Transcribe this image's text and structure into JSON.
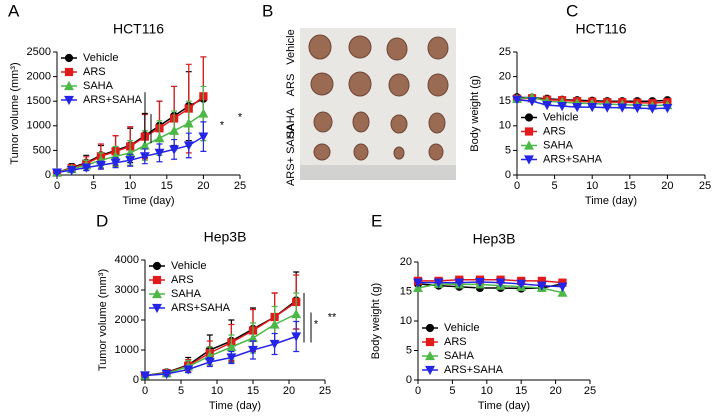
{
  "chart_data": [
    {
      "type": "line",
      "panel_label": "A",
      "title": "HCT116",
      "xlabel": "Time (day)",
      "ylabel": "Tumor volume (mm³)",
      "x": [
        0,
        2,
        4,
        6,
        8,
        10,
        12,
        14,
        16,
        18,
        20
      ],
      "xlim": [
        0,
        25
      ],
      "xticks": [
        0,
        5,
        10,
        15,
        20,
        25
      ],
      "ylim": [
        0,
        2500
      ],
      "yticks": [
        0,
        500,
        1000,
        1500,
        2000,
        2500
      ],
      "legend": "upper left",
      "series": [
        {
          "name": "Vehicle",
          "color": "#000000",
          "marker": "circle",
          "values": [
            50,
            150,
            250,
            400,
            500,
            600,
            800,
            1000,
            1200,
            1400,
            1550
          ],
          "errors": [
            20,
            80,
            150,
            200,
            300,
            350,
            450,
            500,
            600,
            700,
            850
          ]
        },
        {
          "name": "ARS",
          "color": "#e31a1c",
          "marker": "square",
          "values": [
            50,
            140,
            230,
            380,
            480,
            580,
            780,
            950,
            1150,
            1350,
            1600
          ],
          "errors": [
            20,
            70,
            140,
            250,
            320,
            400,
            450,
            550,
            650,
            900,
            800
          ]
        },
        {
          "name": "SAHA",
          "color": "#4cb847",
          "marker": "triangle-up",
          "values": [
            50,
            120,
            200,
            300,
            380,
            450,
            600,
            750,
            900,
            1050,
            1250
          ],
          "errors": [
            20,
            60,
            100,
            150,
            200,
            250,
            300,
            350,
            400,
            450,
            550
          ]
        },
        {
          "name": "ARS+SAHA",
          "color": "#2525e8",
          "marker": "triangle-down",
          "values": [
            50,
            100,
            150,
            200,
            250,
            300,
            380,
            450,
            520,
            600,
            780
          ],
          "errors": [
            20,
            40,
            60,
            80,
            100,
            120,
            150,
            180,
            200,
            250,
            300
          ]
        }
      ],
      "annotations": [
        "*",
        "*"
      ]
    },
    {
      "type": "image",
      "panel_label": "B",
      "row_labels": [
        "Vehicle",
        "ARS",
        "SAHA",
        "ARS+ SAHA"
      ]
    },
    {
      "type": "line",
      "panel_label": "C",
      "title": "HCT116",
      "xlabel": "Time (day)",
      "ylabel": "Body weight (g)",
      "x": [
        0,
        2,
        4,
        6,
        8,
        10,
        12,
        14,
        16,
        18,
        20
      ],
      "xlim": [
        0,
        25
      ],
      "xticks": [
        0,
        5,
        10,
        15,
        20,
        25
      ],
      "ylim": [
        0,
        25
      ],
      "yticks": [
        0,
        5,
        10,
        15,
        20,
        25
      ],
      "legend": "center left",
      "series": [
        {
          "name": "Vehicle",
          "color": "#000000",
          "marker": "circle",
          "values": [
            15.8,
            15.7,
            15.5,
            15.3,
            15.2,
            15.1,
            15.0,
            15.0,
            15.0,
            15.0,
            15.2
          ]
        },
        {
          "name": "ARS",
          "color": "#e31a1c",
          "marker": "square",
          "values": [
            15.5,
            15.6,
            15.3,
            15.2,
            15.0,
            14.9,
            14.8,
            14.8,
            14.7,
            14.6,
            14.8
          ]
        },
        {
          "name": "SAHA",
          "color": "#4cb847",
          "marker": "triangle-up",
          "values": [
            15.5,
            15.8,
            15.0,
            14.8,
            14.6,
            14.5,
            14.4,
            14.3,
            14.2,
            14.1,
            14.2
          ]
        },
        {
          "name": "ARS+SAHA",
          "color": "#2525e8",
          "marker": "triangle-down",
          "values": [
            15.3,
            15.0,
            14.2,
            14.0,
            13.8,
            13.8,
            13.7,
            13.7,
            13.6,
            13.5,
            13.6
          ]
        }
      ]
    },
    {
      "type": "line",
      "panel_label": "D",
      "title": "Hep3B",
      "xlabel": "Time (day)",
      "ylabel": "Tumor volume (mm³)",
      "x": [
        0,
        3,
        6,
        9,
        12,
        15,
        18,
        21
      ],
      "xlim": [
        0,
        25
      ],
      "xticks": [
        0,
        5,
        10,
        15,
        20,
        25
      ],
      "ylim": [
        0,
        4000
      ],
      "yticks": [
        0,
        1000,
        2000,
        3000,
        4000
      ],
      "legend": "upper left",
      "series": [
        {
          "name": "Vehicle",
          "color": "#000000",
          "marker": "circle",
          "values": [
            150,
            250,
            500,
            1000,
            1300,
            1700,
            2100,
            2650
          ],
          "errors": [
            50,
            100,
            250,
            500,
            700,
            700,
            800,
            950
          ]
        },
        {
          "name": "ARS",
          "color": "#e31a1c",
          "marker": "square",
          "values": [
            150,
            230,
            480,
            900,
            1250,
            1650,
            2100,
            2600
          ],
          "errors": [
            50,
            100,
            200,
            400,
            600,
            700,
            800,
            900
          ]
        },
        {
          "name": "SAHA",
          "color": "#4cb847",
          "marker": "triangle-up",
          "values": [
            150,
            220,
            450,
            800,
            1100,
            1400,
            1850,
            2200
          ],
          "errors": [
            50,
            80,
            200,
            300,
            400,
            500,
            600,
            700
          ]
        },
        {
          "name": "ARS+SAHA",
          "color": "#2525e8",
          "marker": "triangle-down",
          "values": [
            150,
            200,
            350,
            600,
            750,
            1000,
            1200,
            1450
          ],
          "errors": [
            50,
            60,
            100,
            150,
            200,
            300,
            350,
            500
          ]
        }
      ],
      "annotations": [
        "*",
        "**"
      ]
    },
    {
      "type": "line",
      "panel_label": "E",
      "title": "Hep3B",
      "xlabel": "Time (day)",
      "ylabel": "Body weight (g)",
      "x": [
        0,
        3,
        6,
        9,
        12,
        15,
        18,
        21
      ],
      "xlim": [
        0,
        25
      ],
      "xticks": [
        0,
        5,
        10,
        15,
        20,
        25
      ],
      "ylim": [
        0,
        20
      ],
      "yticks": [
        0,
        5,
        10,
        15,
        20
      ],
      "legend": "lower left",
      "series": [
        {
          "name": "Vehicle",
          "color": "#000000",
          "marker": "circle",
          "values": [
            16.3,
            16.0,
            15.8,
            15.6,
            15.6,
            15.5,
            15.6,
            16.3
          ]
        },
        {
          "name": "ARS",
          "color": "#e31a1c",
          "marker": "square",
          "values": [
            16.8,
            16.8,
            17.0,
            17.0,
            17.0,
            16.8,
            16.8,
            16.5
          ]
        },
        {
          "name": "SAHA",
          "color": "#4cb847",
          "marker": "triangle-up",
          "values": [
            15.6,
            16.3,
            16.2,
            16.2,
            16.0,
            15.8,
            15.6,
            14.8
          ]
        },
        {
          "name": "ARS+SAHA",
          "color": "#2525e8",
          "marker": "triangle-down",
          "values": [
            16.5,
            16.5,
            16.5,
            16.6,
            16.5,
            16.3,
            16.0,
            15.8
          ]
        }
      ]
    }
  ]
}
